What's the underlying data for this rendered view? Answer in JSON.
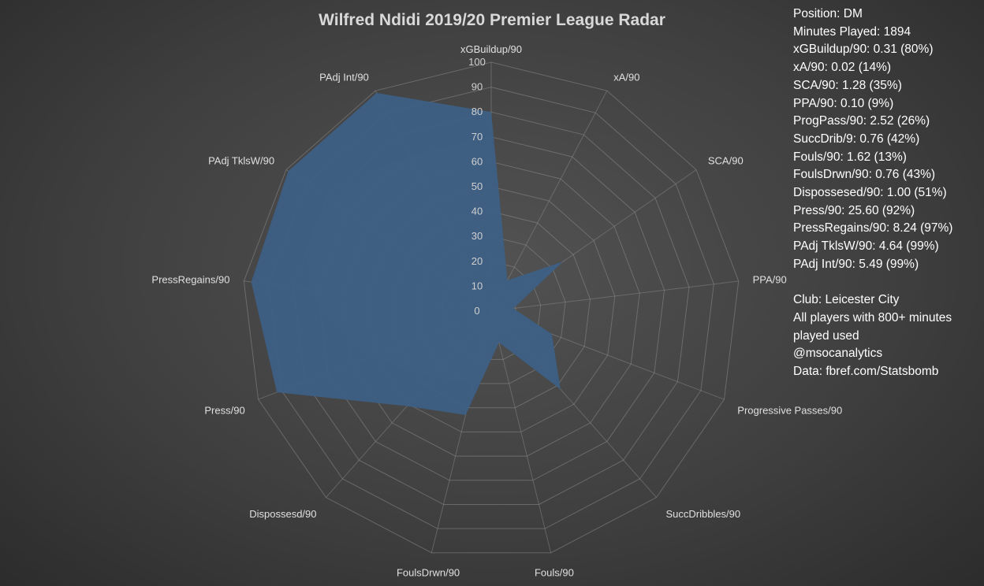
{
  "title": "Wilfred Ndidi 2019/20 Premier League Radar",
  "chart_data": {
    "type": "radar",
    "title": "Wilfred Ndidi 2019/20 Premier League Radar",
    "axes": [
      "xGBuildup/90",
      "xA/90",
      "SCA/90",
      "PPA/90",
      "Progressive Passes/90",
      "SuccDribbles/90",
      "Fouls/90",
      "FoulsDrwn/90",
      "Dispossesd/90",
      "Press/90",
      "PressRegains/90",
      "PAdj TklsW/90",
      "PAdj Int/90"
    ],
    "values": [
      80,
      14,
      35,
      9,
      26,
      42,
      13,
      43,
      51,
      92,
      97,
      99,
      99
    ],
    "radial_ticks": [
      0,
      10,
      20,
      30,
      40,
      50,
      60,
      70,
      80,
      90,
      100
    ],
    "rlim": [
      0,
      100
    ],
    "fill_color": "#3d5f85",
    "grid_color": "#8a8a8a"
  },
  "info": {
    "stats": [
      "Position: DM",
      "Minutes Played: 1894",
      "xGBuildup/90: 0.31 (80%)",
      "xA/90: 0.02 (14%)",
      "SCA/90: 1.28 (35%)",
      "PPA/90: 0.10 (9%)",
      "ProgPass/90: 2.52 (26%)",
      "SuccDrib/9: 0.76 (42%)",
      "Fouls/90: 1.62 (13%)",
      "FoulsDrwn/90: 0.76 (43%)",
      "Dispossesed/90: 1.00 (51%)",
      "Press/90: 25.60 (92%)",
      "PressRegains/90: 8.24 (97%)",
      "PAdj TklsW/90: 4.64 (99%)",
      "PAdj Int/90: 5.49 (99%)"
    ],
    "club": "Club: Leicester City",
    "note": "All players with 800+ minutes played used",
    "handle": "@msocanalytics",
    "source": "Data: fbref.com/Statsbomb"
  }
}
